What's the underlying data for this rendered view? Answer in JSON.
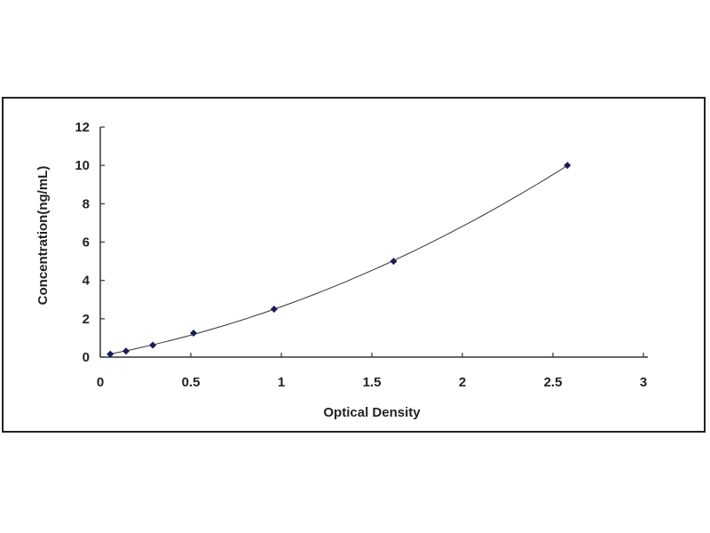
{
  "chart_data": {
    "type": "scatter",
    "title": "",
    "xlabel": "Optical Density",
    "ylabel": "Concentration(ng/mL)",
    "xlim": [
      0,
      3
    ],
    "ylim": [
      0,
      12
    ],
    "xticks": [
      "0",
      "0.5",
      "1",
      "1.5",
      "2",
      "2.5",
      "3"
    ],
    "yticks": [
      "0",
      "2",
      "4",
      "6",
      "8",
      "10",
      "12"
    ],
    "grid": false,
    "legend": "none",
    "series": [
      {
        "x": [
          0.055,
          0.142,
          0.29,
          0.515,
          0.96,
          1.62,
          2.58
        ],
        "y": [
          0.156,
          0.312,
          0.625,
          1.25,
          2.5,
          5,
          10
        ],
        "marker": "diamond",
        "fit_line": true
      }
    ],
    "colors": {
      "marker": "#1a1a5a",
      "line": "#333333",
      "axis": "#333333"
    }
  }
}
